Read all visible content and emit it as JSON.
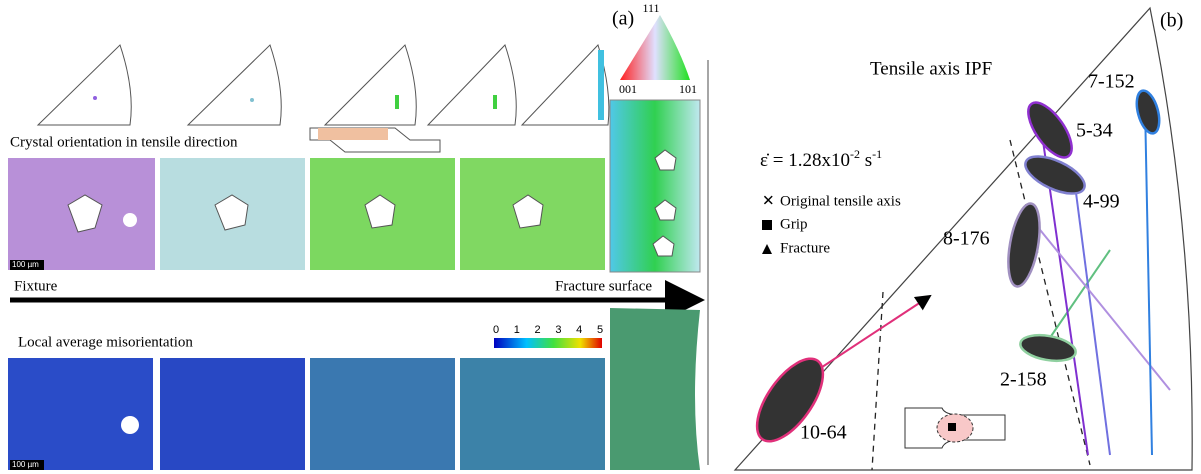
{
  "panel_a": {
    "label": "(a)",
    "ipf_key": {
      "top": "111",
      "left": "001",
      "right": "101"
    },
    "row1_title": "Crystal orientation in tensile direction",
    "scale_bars": [
      "100 µm",
      "100 µm"
    ],
    "arrow_left": "Fixture",
    "arrow_right": "Fracture surface",
    "row2_title": "Local average misorientation",
    "colorbar_ticks": [
      0,
      1,
      2,
      3,
      4,
      5
    ]
  },
  "panel_b": {
    "label": "(b)",
    "title": "Tensile axis IPF",
    "rate": {
      "base": "ε̇ = 1.28x10",
      "exp1": "-2",
      "unit": " s",
      "exp2": "-1"
    },
    "legend": [
      "Original tensile axis",
      "Grip",
      "Fracture"
    ],
    "samples": [
      "7-152",
      "5-34",
      "4-99",
      "8-176",
      "2-158",
      "10-64"
    ]
  }
}
